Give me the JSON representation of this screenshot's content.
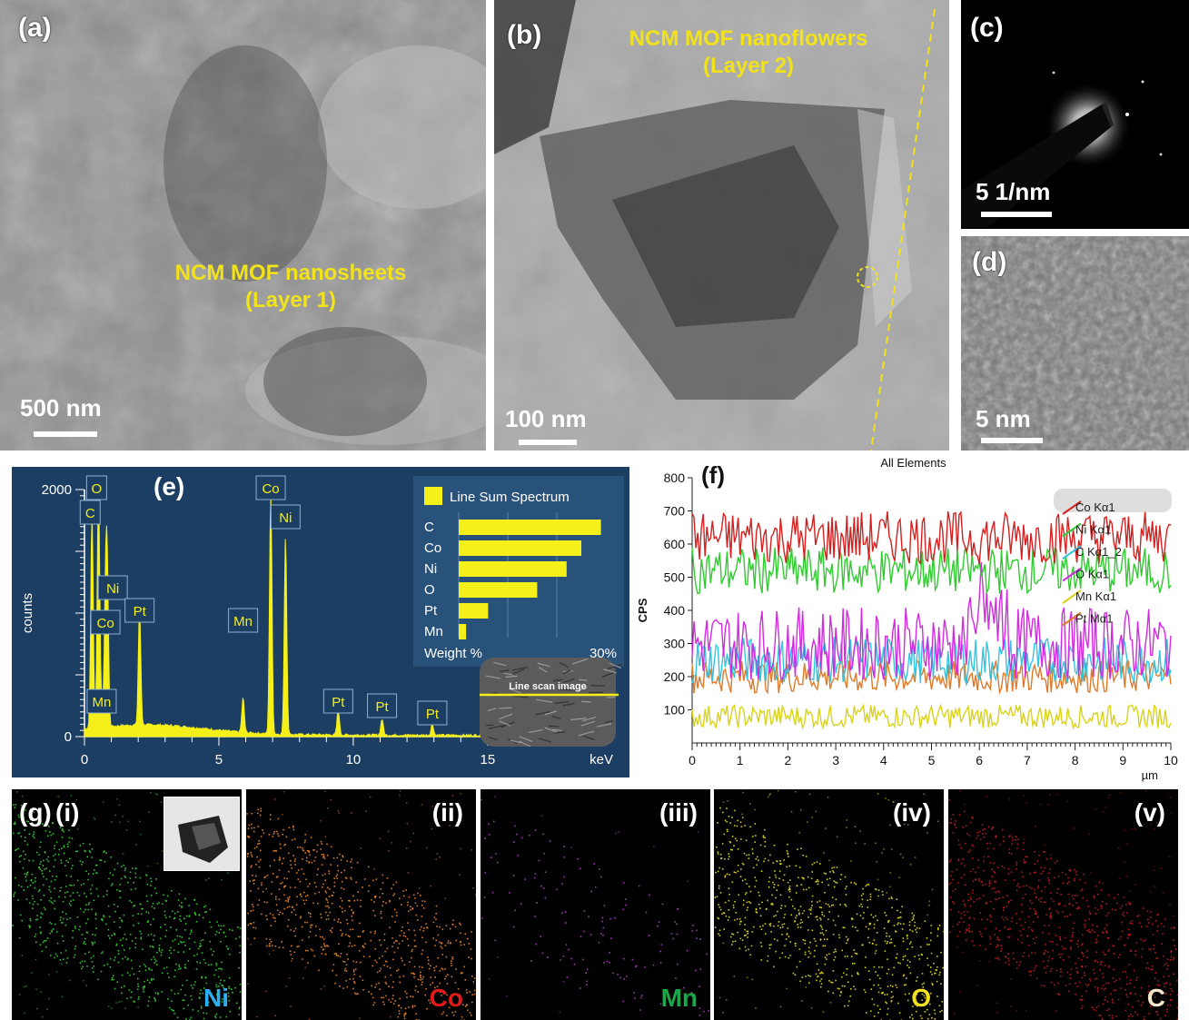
{
  "panels": {
    "a": {
      "label": "(a)",
      "annotation_line1": "NCM MOF nanosheets",
      "annotation_line2": "(Layer 1)",
      "scale": "500 nm"
    },
    "b": {
      "label": "(b)",
      "annotation_line1": "NCM MOF nanoflowers",
      "annotation_line2": "(Layer 2)",
      "scale": "100 nm"
    },
    "c": {
      "label": "(c)",
      "scale": "5 1/nm"
    },
    "d": {
      "label": "(d)",
      "scale": "5 nm"
    },
    "e": {
      "label": "(e)",
      "inset_title": "Line Sum Spectrum",
      "inset_footer_left": "Weight %",
      "inset_footer_right": "30%",
      "scan_image_label": "Line scan image"
    },
    "f": {
      "label": "(f)"
    },
    "g": {
      "label": "(g)",
      "sub": [
        "(i)",
        "(ii)",
        "(iii)",
        "(iv)",
        "(v)"
      ],
      "elements": [
        "Ni",
        "Co",
        "Mn",
        "O",
        "C"
      ]
    }
  },
  "colors": {
    "annotation": "#f2e21a",
    "eds_background": "#1c3e62",
    "peak": "#f5f019"
  },
  "chart_data": [
    {
      "type": "area",
      "title": "",
      "xlabel": "keV",
      "ylabel": "counts",
      "xlim": [
        0,
        20
      ],
      "ylim": [
        0,
        2000
      ],
      "xticks": [
        0,
        5,
        10,
        15
      ],
      "yticks": [
        0,
        2000
      ],
      "peaks": [
        {
          "label": "O",
          "x": 0.52,
          "y": 2000
        },
        {
          "label": "C",
          "x": 0.28,
          "y": 1750
        },
        {
          "label": "Ni",
          "x": 0.85,
          "y": 1180
        },
        {
          "label": "Co",
          "x": 0.78,
          "y": 1000
        },
        {
          "label": "Mn",
          "x": 0.64,
          "y": 200
        },
        {
          "label": "Pt",
          "x": 2.05,
          "y": 950
        },
        {
          "label": "Mn",
          "x": 5.9,
          "y": 280
        },
        {
          "label": "Co",
          "x": 6.93,
          "y": 1950
        },
        {
          "label": "Ni",
          "x": 7.48,
          "y": 1600
        },
        {
          "label": "Pt",
          "x": 9.44,
          "y": 200
        },
        {
          "label": "Pt",
          "x": 11.07,
          "y": 130
        },
        {
          "label": "Pt",
          "x": 12.94,
          "y": 90
        }
      ],
      "inset_bar": {
        "title": "Line Sum Spectrum",
        "categories": [
          "C",
          "Co",
          "Ni",
          "O",
          "Pt",
          "Mn"
        ],
        "values": [
          29,
          25,
          22,
          16,
          6,
          1.5
        ],
        "xlabel": "Weight %",
        "xmax_label": "30%"
      }
    },
    {
      "type": "line",
      "title": "All Elements",
      "xlabel": "µm",
      "ylabel": "CPS",
      "xlim": [
        0,
        10
      ],
      "ylim": [
        0,
        800
      ],
      "xticks": [
        0,
        1,
        2,
        3,
        4,
        5,
        6,
        7,
        8,
        9,
        10
      ],
      "yticks": [
        100,
        200,
        300,
        400,
        500,
        600,
        700,
        800
      ],
      "series": [
        {
          "name": "Co Kα1",
          "color": "#d62020",
          "mean": 620,
          "amp": 80
        },
        {
          "name": "Ni Kα1",
          "color": "#2fcb2f",
          "mean": 520,
          "amp": 70
        },
        {
          "name": "C Kα1_2",
          "color": "#33c4e0",
          "mean": 250,
          "amp": 70
        },
        {
          "name": "O Kα1",
          "color": "#d22be0",
          "mean": 300,
          "amp": 110
        },
        {
          "name": "Mn Kα1",
          "color": "#d9d31a",
          "mean": 80,
          "amp": 35
        },
        {
          "name": "Pt Mα1",
          "color": "#e07a2a",
          "mean": 200,
          "amp": 50
        }
      ]
    }
  ]
}
